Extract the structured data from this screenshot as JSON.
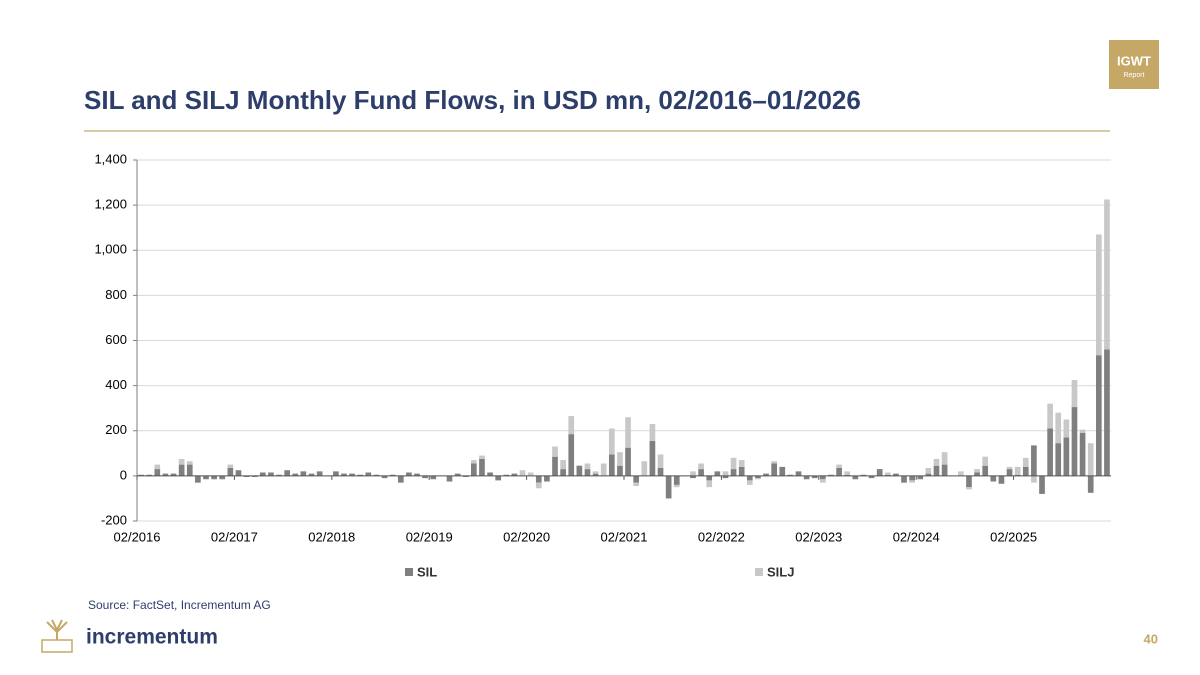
{
  "header": {
    "title": "SIL and SILJ Monthly Fund Flows, in USD mn, 02/2016–01/2026",
    "badge_top": "IGWT",
    "badge_bottom": "Report"
  },
  "chart_data": {
    "type": "stacked_bar",
    "categories": [
      "02/2016",
      null,
      null,
      null,
      null,
      null,
      null,
      null,
      null,
      null,
      null,
      null,
      "02/2017",
      null,
      null,
      null,
      null,
      null,
      null,
      null,
      null,
      null,
      null,
      null,
      "02/2018",
      null,
      null,
      null,
      null,
      null,
      null,
      null,
      null,
      null,
      null,
      null,
      "02/2019",
      null,
      null,
      null,
      null,
      null,
      null,
      null,
      null,
      null,
      null,
      null,
      "02/2020",
      null,
      null,
      null,
      null,
      null,
      null,
      null,
      null,
      null,
      null,
      null,
      "02/2021",
      null,
      null,
      null,
      null,
      null,
      null,
      null,
      null,
      null,
      null,
      null,
      "02/2022",
      null,
      null,
      null,
      null,
      null,
      null,
      null,
      null,
      null,
      null,
      null,
      "02/2023",
      null,
      null,
      null,
      null,
      null,
      null,
      null,
      null,
      null,
      null,
      null,
      "02/2024",
      null,
      null,
      null,
      null,
      null,
      null,
      null,
      null,
      null,
      null,
      null,
      "02/2025",
      null,
      null,
      null,
      null,
      null,
      null,
      null,
      null,
      null,
      null,
      null
    ],
    "series": [
      {
        "name": "SIL",
        "color": "#7f7f7f",
        "values": [
          5,
          5,
          30,
          10,
          10,
          50,
          50,
          -30,
          -15,
          -15,
          -15,
          35,
          25,
          -5,
          -5,
          15,
          15,
          5,
          25,
          10,
          20,
          10,
          20,
          0,
          20,
          10,
          10,
          5,
          15,
          5,
          -10,
          5,
          -30,
          15,
          10,
          -10,
          -15,
          0,
          -25,
          10,
          -5,
          55,
          75,
          15,
          -20,
          5,
          10,
          0,
          0,
          -30,
          -25,
          85,
          30,
          185,
          45,
          30,
          10,
          0,
          95,
          45,
          125,
          -30,
          0,
          155,
          35,
          -100,
          -40,
          0,
          -10,
          30,
          -20,
          20,
          -10,
          30,
          40,
          -20,
          -10,
          10,
          55,
          40,
          5,
          20,
          -15,
          -10,
          -15,
          5,
          35,
          5,
          -15,
          5,
          -10,
          30,
          5,
          10,
          -30,
          -20,
          -15,
          10,
          45,
          50,
          0,
          0,
          -50,
          15,
          45,
          -25,
          -35,
          30,
          5,
          40,
          135,
          -80,
          210,
          145,
          170,
          305,
          190,
          -75,
          535,
          560
        ]
      },
      {
        "name": "SILJ",
        "color": "#c8c8c8",
        "values": [
          0,
          0,
          20,
          0,
          0,
          25,
          15,
          0,
          0,
          0,
          0,
          15,
          0,
          0,
          0,
          0,
          0,
          0,
          0,
          0,
          0,
          0,
          0,
          0,
          0,
          0,
          0,
          0,
          0,
          0,
          0,
          0,
          0,
          0,
          0,
          0,
          0,
          0,
          0,
          0,
          0,
          15,
          15,
          0,
          0,
          0,
          0,
          25,
          15,
          -25,
          0,
          45,
          40,
          80,
          0,
          25,
          10,
          55,
          115,
          60,
          135,
          -15,
          65,
          75,
          60,
          0,
          -10,
          0,
          20,
          25,
          -30,
          0,
          20,
          50,
          30,
          -20,
          -5,
          0,
          10,
          0,
          0,
          0,
          0,
          0,
          -15,
          0,
          15,
          15,
          0,
          0,
          0,
          0,
          10,
          0,
          0,
          -10,
          0,
          25,
          30,
          55,
          0,
          20,
          -10,
          15,
          40,
          0,
          0,
          10,
          35,
          40,
          -30,
          0,
          110,
          135,
          80,
          120,
          15,
          145,
          535,
          665
        ]
      }
    ],
    "ylim": [
      -200,
      1400
    ],
    "yticks": [
      {
        "value": -200,
        "label": "-200"
      },
      0,
      200,
      400,
      600,
      800,
      {
        "value": 1000,
        "label": "1,000"
      },
      {
        "value": 1200,
        "label": "1,200"
      },
      {
        "value": 1400,
        "label": "1,400"
      }
    ],
    "grid": true,
    "legend": "bottom"
  },
  "footer": {
    "source": "Source: FactSet, Incrementum AG",
    "brand": "incrementum",
    "page": "40"
  }
}
